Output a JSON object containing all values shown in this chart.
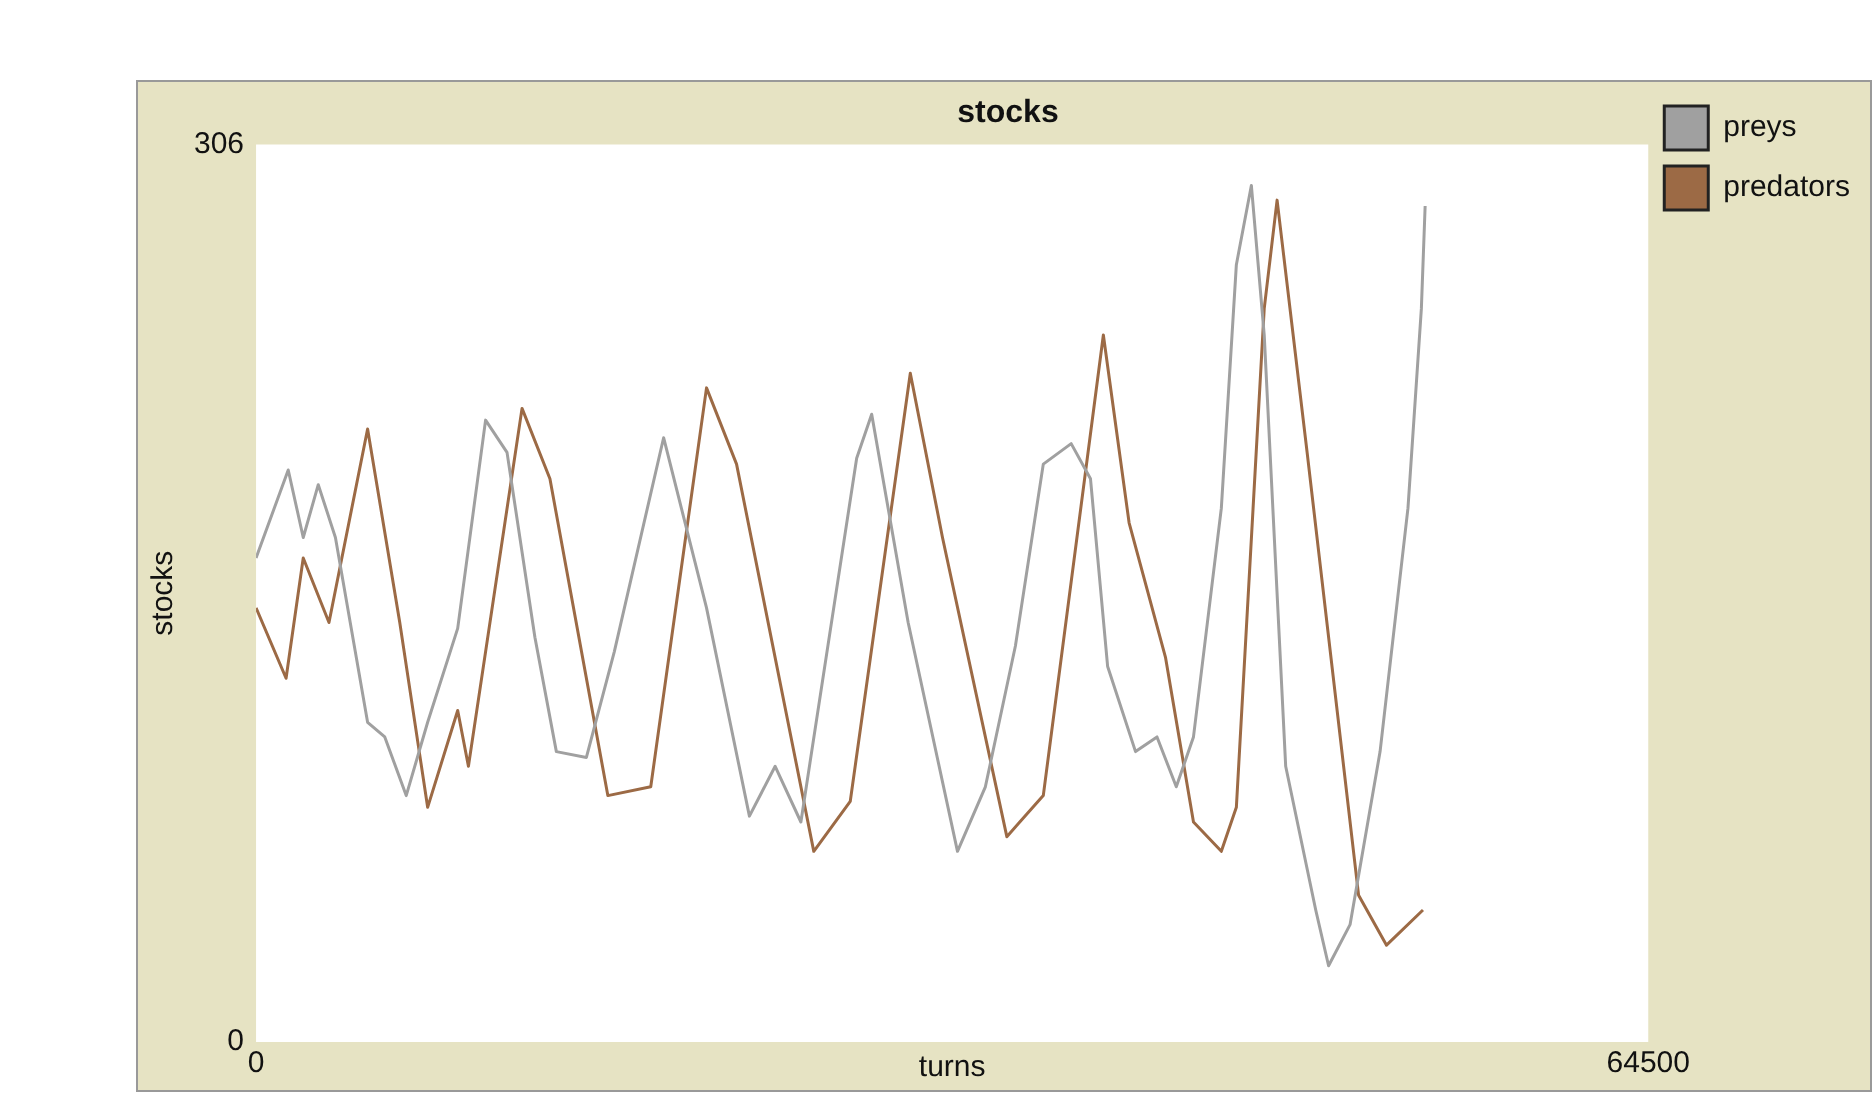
{
  "chart_data": {
    "type": "line",
    "title": "stocks",
    "xlabel": "turns",
    "ylabel": "stocks",
    "xlim": [
      0,
      64500
    ],
    "xticks": [
      0,
      64500
    ],
    "ylim": [
      0,
      306
    ],
    "yticks": [
      0,
      306
    ],
    "grid": false,
    "legend": "top right",
    "marker": "none",
    "line_style": "solid",
    "series": [
      {
        "name": "preys",
        "color": "#a0a0a0",
        "x": [
          0,
          1491,
          2186,
          2882,
          3677,
          5168,
          5963,
          6957,
          7950,
          9342,
          10634,
          11627,
          12919,
          13913,
          15304,
          16596,
          18882,
          20870,
          22857,
          24050,
          25242,
          27826,
          28522,
          30211,
          32497,
          33789,
          35180,
          36472,
          37764,
          38659,
          39454,
          40746,
          41740,
          42634,
          43430,
          44721,
          45417,
          46112,
          46708,
          47702,
          49094,
          49690,
          50684,
          52075,
          53367,
          53988,
          54163
        ],
        "values": [
          165,
          195,
          172,
          190,
          172,
          109,
          104,
          84,
          109,
          141,
          212,
          201,
          138,
          99,
          97,
          133,
          206,
          148,
          77,
          94,
          75,
          199,
          214,
          143,
          65,
          87,
          135,
          197,
          204,
          192,
          128,
          99,
          104,
          87,
          104,
          182,
          265,
          292,
          241,
          94,
          45,
          26,
          40,
          99,
          182,
          250,
          285
        ]
      },
      {
        "name": "predators",
        "color": "#9c6a45",
        "x": [
          0,
          1391,
          2186,
          3379,
          5168,
          6658,
          7950,
          9342,
          9839,
          12323,
          13615,
          16298,
          18286,
          20870,
          22261,
          25839,
          27528,
          30311,
          31802,
          34783,
          36472,
          39255,
          40448,
          42137,
          43430,
          44721,
          45417,
          46708,
          47304,
          48695,
          51081,
          52374,
          54063
        ],
        "values": [
          148,
          124,
          165,
          143,
          209,
          143,
          80,
          113,
          94,
          216,
          192,
          84,
          87,
          223,
          197,
          65,
          82,
          228,
          172,
          70,
          84,
          241,
          177,
          131,
          75,
          65,
          80,
          250,
          287,
          201,
          50,
          33,
          45
        ]
      }
    ]
  }
}
